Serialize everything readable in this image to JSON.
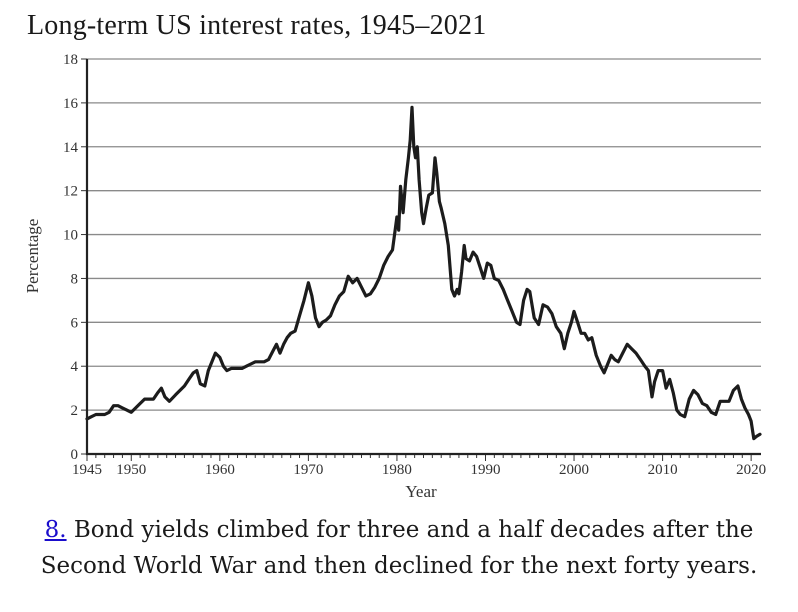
{
  "figure": {
    "number_label": "8.",
    "caption_text": " Bond yields climbed for three and a half decades after the Second World War and then declined for the next forty years.",
    "link_color": "#1a0dcc"
  },
  "chart_data": {
    "type": "line",
    "title": "Long-term US interest rates, 1945–2021",
    "xlabel": "Year",
    "ylabel": "Percentage",
    "xlim": [
      1945,
      2021
    ],
    "ylim": [
      0,
      18
    ],
    "xticks": [
      1945,
      1950,
      1960,
      1970,
      1980,
      1990,
      2000,
      2010,
      2020
    ],
    "yticks": [
      0,
      2,
      4,
      6,
      8,
      10,
      12,
      14,
      16,
      18
    ],
    "grid": "horizontal",
    "legend": "none",
    "line_color": "#1c1c1c",
    "series": [
      {
        "name": "Long-term US interest rate",
        "x": [
          1945.0,
          1945.5,
          1946.0,
          1946.5,
          1947.0,
          1947.5,
          1948.0,
          1948.5,
          1949.0,
          1949.5,
          1950.0,
          1950.5,
          1951.0,
          1951.5,
          1952.0,
          1952.5,
          1953.0,
          1953.4,
          1953.8,
          1954.3,
          1955.0,
          1955.5,
          1956.0,
          1956.5,
          1957.0,
          1957.4,
          1957.8,
          1958.3,
          1958.7,
          1959.0,
          1959.5,
          1960.0,
          1960.4,
          1960.8,
          1961.3,
          1962.0,
          1962.5,
          1963.0,
          1963.5,
          1964.0,
          1964.5,
          1965.0,
          1965.5,
          1966.0,
          1966.4,
          1966.8,
          1967.2,
          1967.6,
          1968.0,
          1968.5,
          1969.0,
          1969.5,
          1970.0,
          1970.4,
          1970.8,
          1971.2,
          1971.6,
          1972.0,
          1972.5,
          1973.0,
          1973.5,
          1974.0,
          1974.5,
          1975.0,
          1975.5,
          1976.0,
          1976.5,
          1977.0,
          1977.5,
          1978.0,
          1978.5,
          1979.0,
          1979.5,
          1980.0,
          1980.2,
          1980.4,
          1980.7,
          1981.0,
          1981.3,
          1981.5,
          1981.7,
          1981.9,
          1982.1,
          1982.3,
          1982.5,
          1982.8,
          1983.0,
          1983.3,
          1983.6,
          1984.0,
          1984.3,
          1984.5,
          1984.8,
          1985.0,
          1985.4,
          1985.8,
          1986.2,
          1986.5,
          1986.8,
          1987.0,
          1987.3,
          1987.6,
          1987.8,
          1988.2,
          1988.6,
          1989.0,
          1989.4,
          1989.8,
          1990.2,
          1990.6,
          1991.0,
          1991.5,
          1992.0,
          1992.5,
          1993.0,
          1993.5,
          1993.9,
          1994.3,
          1994.7,
          1995.0,
          1995.5,
          1996.0,
          1996.5,
          1997.0,
          1997.5,
          1998.0,
          1998.5,
          1998.9,
          1999.3,
          1999.7,
          2000.0,
          2000.4,
          2000.8,
          2001.2,
          2001.6,
          2002.0,
          2002.5,
          2003.0,
          2003.4,
          2003.8,
          2004.2,
          2004.6,
          2005.0,
          2005.5,
          2006.0,
          2006.5,
          2007.0,
          2007.5,
          2008.0,
          2008.4,
          2008.8,
          2009.1,
          2009.5,
          2010.0,
          2010.4,
          2010.8,
          2011.2,
          2011.6,
          2012.0,
          2012.5,
          2013.0,
          2013.5,
          2014.0,
          2014.5,
          2015.0,
          2015.5,
          2016.0,
          2016.5,
          2017.0,
          2017.5,
          2018.0,
          2018.5,
          2018.9,
          2019.3,
          2019.7,
          2020.0,
          2020.3,
          2020.6,
          2021.0
        ],
        "y": [
          1.6,
          1.7,
          1.8,
          1.8,
          1.8,
          1.9,
          2.2,
          2.2,
          2.1,
          2.0,
          1.9,
          2.1,
          2.3,
          2.5,
          2.5,
          2.5,
          2.8,
          3.0,
          2.6,
          2.4,
          2.7,
          2.9,
          3.1,
          3.4,
          3.7,
          3.8,
          3.2,
          3.1,
          3.8,
          4.1,
          4.6,
          4.4,
          4.0,
          3.8,
          3.9,
          3.9,
          3.9,
          4.0,
          4.1,
          4.2,
          4.2,
          4.2,
          4.3,
          4.7,
          5.0,
          4.6,
          5.0,
          5.3,
          5.5,
          5.6,
          6.3,
          7.0,
          7.8,
          7.2,
          6.2,
          5.8,
          6.0,
          6.1,
          6.3,
          6.8,
          7.2,
          7.4,
          8.1,
          7.8,
          8.0,
          7.6,
          7.2,
          7.3,
          7.6,
          8.0,
          8.6,
          9.0,
          9.3,
          10.8,
          10.2,
          12.2,
          11.0,
          12.5,
          13.5,
          14.3,
          15.8,
          14.0,
          13.5,
          14.0,
          12.5,
          11.0,
          10.5,
          11.2,
          11.8,
          11.9,
          13.5,
          12.8,
          11.5,
          11.2,
          10.5,
          9.5,
          7.5,
          7.2,
          7.5,
          7.3,
          8.3,
          9.5,
          8.9,
          8.8,
          9.2,
          9.0,
          8.5,
          8.0,
          8.7,
          8.6,
          8.0,
          7.9,
          7.5,
          7.0,
          6.5,
          6.0,
          5.9,
          7.0,
          7.5,
          7.4,
          6.2,
          5.9,
          6.8,
          6.7,
          6.4,
          5.8,
          5.5,
          4.8,
          5.5,
          6.0,
          6.5,
          6.0,
          5.5,
          5.5,
          5.2,
          5.3,
          4.5,
          4.0,
          3.7,
          4.1,
          4.5,
          4.3,
          4.2,
          4.6,
          5.0,
          4.8,
          4.6,
          4.3,
          4.0,
          3.8,
          2.6,
          3.3,
          3.8,
          3.8,
          3.0,
          3.4,
          2.8,
          2.0,
          1.8,
          1.7,
          2.5,
          2.9,
          2.7,
          2.3,
          2.2,
          1.9,
          1.8,
          2.4,
          2.4,
          2.4,
          2.9,
          3.1,
          2.5,
          2.1,
          1.8,
          1.5,
          0.7,
          0.8,
          0.9
        ]
      }
    ]
  }
}
